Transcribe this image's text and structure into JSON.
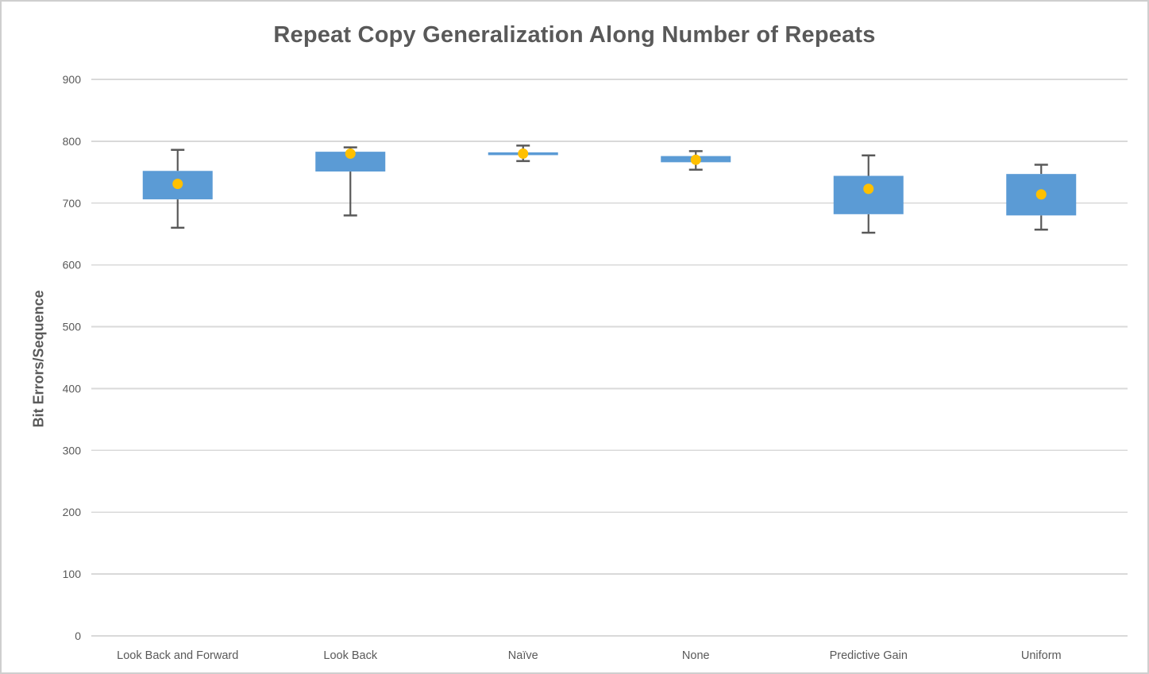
{
  "title": "Repeat Copy Generalization Along Number of Repeats",
  "ylabel": "Bit Errors/Sequence",
  "colors": {
    "box_fill": "#5B9BD5",
    "mean_marker": "#FFC000",
    "whisker": "#595959",
    "gridline": "#D9D9D9",
    "text": "#595959",
    "background": "#FFFFFF",
    "frame_border": "#CFCFCF"
  },
  "chart_data": {
    "type": "boxplot",
    "title": "Repeat Copy Generalization Along Number of Repeats",
    "xlabel": "",
    "ylabel": "Bit Errors/Sequence",
    "ylim": [
      0,
      900
    ],
    "yticks": [
      0,
      100,
      200,
      300,
      400,
      500,
      600,
      700,
      800,
      900
    ],
    "grid": "horizontal",
    "legend": "none",
    "median_line_visible": false,
    "mean_marker_visible": true,
    "categories": [
      "Look Back and Forward",
      "Look Back",
      "Naïve",
      "None",
      "Predictive Gain",
      "Uniform"
    ],
    "series": [
      {
        "category": "Look Back and Forward",
        "whisker_low": 660,
        "q1": 706,
        "q3": 752,
        "whisker_high": 786,
        "mean": 731
      },
      {
        "category": "Look Back",
        "whisker_low": 680,
        "q1": 751,
        "q3": 783,
        "whisker_high": 790,
        "mean": 780
      },
      {
        "category": "Naïve",
        "whisker_low": 768,
        "q1": 778,
        "q3": 782,
        "whisker_high": 793,
        "mean": 780
      },
      {
        "category": "None",
        "whisker_low": 754,
        "q1": 766,
        "q3": 776,
        "whisker_high": 784,
        "mean": 770
      },
      {
        "category": "Predictive Gain",
        "whisker_low": 652,
        "q1": 682,
        "q3": 744,
        "whisker_high": 777,
        "mean": 723
      },
      {
        "category": "Uniform",
        "whisker_low": 657,
        "q1": 680,
        "q3": 747,
        "whisker_high": 762,
        "mean": 714
      }
    ]
  }
}
